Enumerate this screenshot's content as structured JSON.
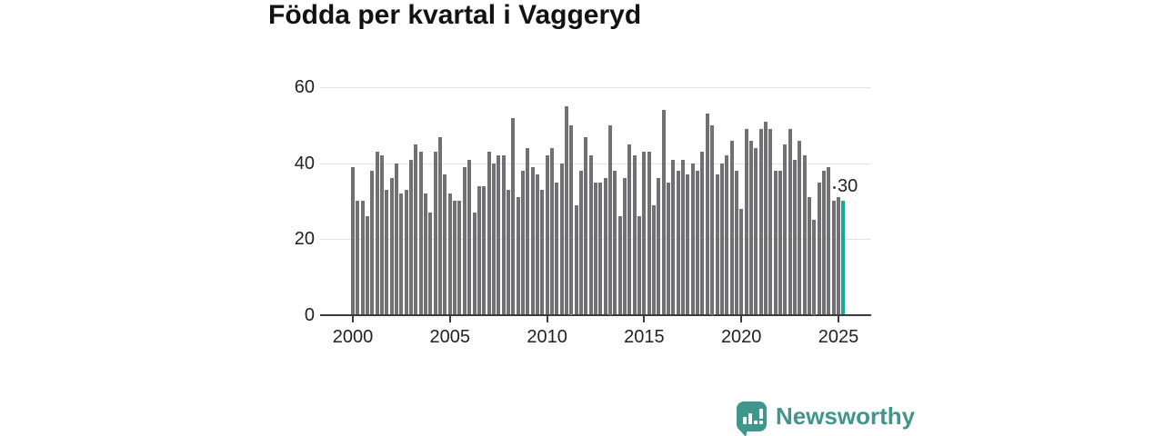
{
  "title": "Födda per kvartal i Vaggeryd",
  "chart_data": {
    "type": "bar",
    "title": "Födda per kvartal i Vaggeryd",
    "xlabel": "",
    "ylabel": "",
    "ylim": [
      0,
      60
    ],
    "y_ticks": [
      0,
      20,
      40,
      60
    ],
    "x_tick_labels": [
      "2000",
      "2005",
      "2010",
      "2015",
      "2020",
      "2025"
    ],
    "grid": "horizontal",
    "legend": "none",
    "start_period": "2000 Q1",
    "end_period": "2025 Q2",
    "values": [
      39,
      30,
      30,
      26,
      38,
      43,
      42,
      33,
      36,
      40,
      32,
      33,
      41,
      45,
      43,
      32,
      27,
      43,
      47,
      37,
      32,
      30,
      30,
      39,
      41,
      27,
      34,
      34,
      43,
      40,
      42,
      42,
      33,
      52,
      31,
      38,
      44,
      39,
      37,
      33,
      42,
      44,
      35,
      40,
      55,
      50,
      29,
      38,
      47,
      42,
      35,
      35,
      36,
      50,
      38,
      26,
      36,
      45,
      42,
      26,
      43,
      43,
      29,
      36,
      54,
      35,
      41,
      38,
      41,
      37,
      40,
      38,
      43,
      53,
      50,
      37,
      40,
      42,
      46,
      38,
      28,
      49,
      46,
      44,
      49,
      51,
      49,
      38,
      38,
      45,
      49,
      41,
      46,
      42,
      31,
      25,
      35,
      38,
      39,
      30,
      31,
      30
    ],
    "bar_color": "#707075",
    "highlight": {
      "index": 101,
      "period": "2025 Q2",
      "value": 30,
      "label": "30",
      "color": "#10a89e"
    }
  },
  "branding": {
    "logo_text": "Newsworthy",
    "logo_color": "#40968c",
    "logo_icon": "speech-bubble-bar-chart"
  }
}
